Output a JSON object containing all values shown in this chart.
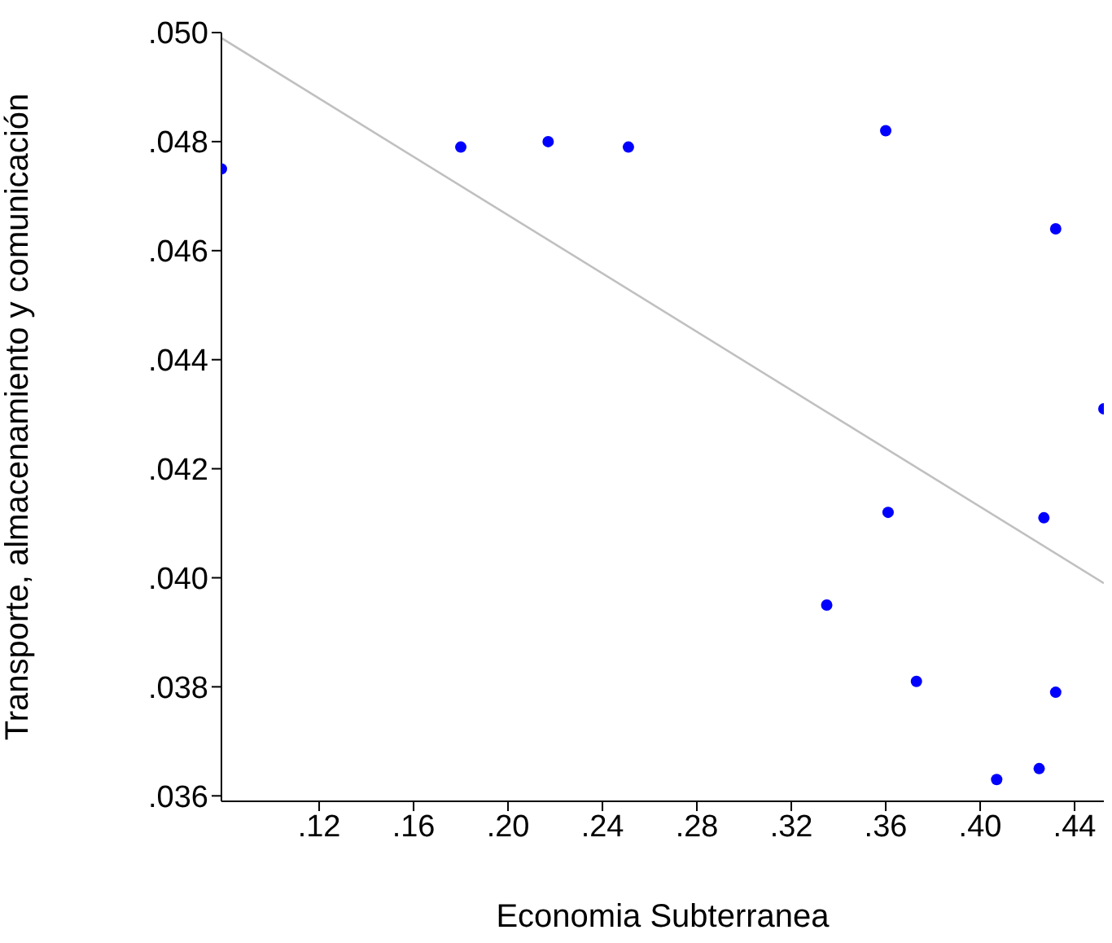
{
  "chart_data": {
    "type": "scatter",
    "xlabel": "Economia Subterranea",
    "ylabel": "Transporte, almacenamiento y comunicación",
    "xlim": [
      0.0786,
      0.4524
    ],
    "ylim": [
      0.0359,
      0.05
    ],
    "xticks": [
      {
        "value": 0.12,
        "label": ".12"
      },
      {
        "value": 0.16,
        "label": ".16"
      },
      {
        "value": 0.2,
        "label": ".20"
      },
      {
        "value": 0.24,
        "label": ".24"
      },
      {
        "value": 0.28,
        "label": ".28"
      },
      {
        "value": 0.32,
        "label": ".32"
      },
      {
        "value": 0.36,
        "label": ".36"
      },
      {
        "value": 0.4,
        "label": ".40"
      },
      {
        "value": 0.44,
        "label": ".44"
      }
    ],
    "yticks": [
      {
        "value": 0.036,
        "label": ".036"
      },
      {
        "value": 0.038,
        "label": ".038"
      },
      {
        "value": 0.04,
        "label": ".040"
      },
      {
        "value": 0.042,
        "label": ".042"
      },
      {
        "value": 0.044,
        "label": ".044"
      },
      {
        "value": 0.046,
        "label": ".046"
      },
      {
        "value": 0.048,
        "label": ".048"
      },
      {
        "value": 0.05,
        "label": ".050"
      }
    ],
    "series": [
      {
        "marker": "circle",
        "color": "#0000ff",
        "x": [
          0.0786,
          0.18,
          0.217,
          0.251,
          0.36,
          0.432,
          0.4524,
          0.361,
          0.427,
          0.335,
          0.373,
          0.432,
          0.425,
          0.407
        ],
        "values": [
          0.0475,
          0.0479,
          0.048,
          0.0479,
          0.0482,
          0.0464,
          0.0431,
          0.0412,
          0.0411,
          0.0395,
          0.0381,
          0.0379,
          0.0365,
          0.0363
        ]
      },
      {
        "type": "line",
        "color": "#c0c0c0",
        "x": [
          0.0786,
          0.4524
        ],
        "values": [
          0.0499,
          0.0399
        ]
      }
    ]
  }
}
